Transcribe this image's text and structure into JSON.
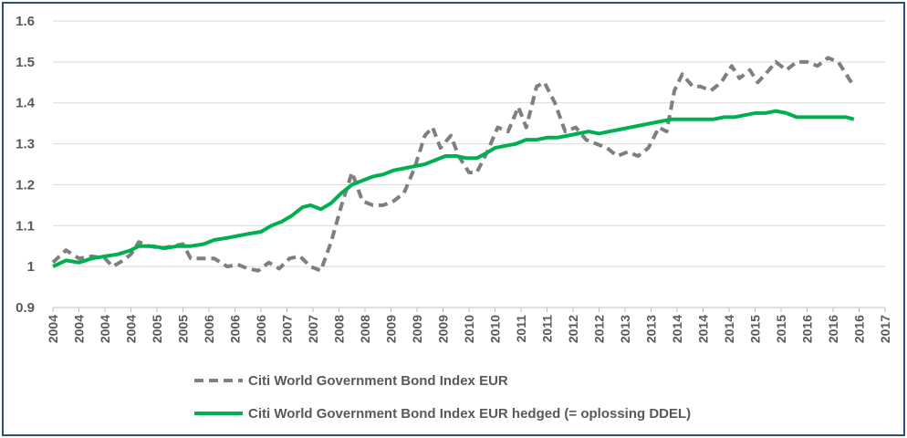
{
  "chart_data": {
    "type": "line",
    "title": "",
    "xlabel": "",
    "ylabel": "",
    "ylim": [
      0.9,
      1.6
    ],
    "yticks": [
      "0.9",
      "1",
      "1.1",
      "1.2",
      "1.3",
      "1.4",
      "1.5",
      "1.6"
    ],
    "xtick_labels": [
      "2004",
      "2004",
      "2004",
      "2004",
      "2005",
      "2005",
      "2006",
      "2006",
      "2006",
      "2007",
      "2007",
      "2008",
      "2008",
      "2009",
      "2009",
      "2009",
      "2010",
      "2010",
      "2011",
      "2011",
      "2012",
      "2012",
      "2013",
      "2013",
      "2014",
      "2014",
      "2014",
      "2015",
      "2015",
      "2016",
      "2016",
      "2016",
      "2017"
    ],
    "grid": "horizontal",
    "legend_position": "bottom",
    "series": [
      {
        "name": "Citi World Government Bond Index EUR",
        "color": "#7f7f7f",
        "style": "dashed",
        "points": [
          [
            0,
            1.01
          ],
          [
            0.5,
            1.04
          ],
          [
            1,
            1.02
          ],
          [
            1.5,
            1.025
          ],
          [
            2,
            1.02
          ],
          [
            2.3,
            1.0
          ],
          [
            2.7,
            1.015
          ],
          [
            3,
            1.03
          ],
          [
            3.3,
            1.06
          ],
          [
            3.7,
            1.05
          ],
          [
            4.2,
            1.045
          ],
          [
            4.6,
            1.05
          ],
          [
            5,
            1.055
          ],
          [
            5.3,
            1.02
          ],
          [
            5.8,
            1.02
          ],
          [
            6.2,
            1.02
          ],
          [
            6.7,
            1.0
          ],
          [
            7.1,
            1.005
          ],
          [
            7.5,
            0.995
          ],
          [
            7.9,
            0.99
          ],
          [
            8.3,
            1.01
          ],
          [
            8.7,
            0.995
          ],
          [
            9.1,
            1.02
          ],
          [
            9.5,
            1.025
          ],
          [
            9.9,
            1.0
          ],
          [
            10.3,
            0.99
          ],
          [
            10.7,
            1.06
          ],
          [
            11.1,
            1.15
          ],
          [
            11.5,
            1.23
          ],
          [
            11.9,
            1.16
          ],
          [
            12.3,
            1.15
          ],
          [
            12.7,
            1.15
          ],
          [
            13.1,
            1.16
          ],
          [
            13.5,
            1.18
          ],
          [
            13.9,
            1.24
          ],
          [
            14.3,
            1.32
          ],
          [
            14.6,
            1.34
          ],
          [
            14.9,
            1.29
          ],
          [
            15.3,
            1.32
          ],
          [
            15.6,
            1.27
          ],
          [
            16,
            1.23
          ],
          [
            16.3,
            1.23
          ],
          [
            16.7,
            1.28
          ],
          [
            17.1,
            1.34
          ],
          [
            17.5,
            1.33
          ],
          [
            17.9,
            1.39
          ],
          [
            18.2,
            1.34
          ],
          [
            18.6,
            1.44
          ],
          [
            18.9,
            1.45
          ],
          [
            19.3,
            1.4
          ],
          [
            19.7,
            1.33
          ],
          [
            20.1,
            1.34
          ],
          [
            20.5,
            1.31
          ],
          [
            20.9,
            1.3
          ],
          [
            21.3,
            1.29
          ],
          [
            21.7,
            1.27
          ],
          [
            22.1,
            1.28
          ],
          [
            22.5,
            1.27
          ],
          [
            22.9,
            1.29
          ],
          [
            23.3,
            1.34
          ],
          [
            23.6,
            1.33
          ],
          [
            23.9,
            1.43
          ],
          [
            24.2,
            1.47
          ],
          [
            24.6,
            1.44
          ],
          [
            24.9,
            1.44
          ],
          [
            25.3,
            1.43
          ],
          [
            25.7,
            1.45
          ],
          [
            26.1,
            1.49
          ],
          [
            26.4,
            1.46
          ],
          [
            26.8,
            1.48
          ],
          [
            27.1,
            1.45
          ],
          [
            27.4,
            1.47
          ],
          [
            27.8,
            1.5
          ],
          [
            28.2,
            1.48
          ],
          [
            28.6,
            1.5
          ],
          [
            29,
            1.5
          ],
          [
            29.4,
            1.49
          ],
          [
            29.8,
            1.51
          ],
          [
            30.2,
            1.5
          ],
          [
            30.5,
            1.47
          ],
          [
            30.8,
            1.44
          ]
        ]
      },
      {
        "name": "Citi World Government Bond Index EUR hedged (= oplossing DDEL)",
        "color": "#00b050",
        "style": "solid",
        "points": [
          [
            0,
            1.0
          ],
          [
            0.5,
            1.015
          ],
          [
            1,
            1.01
          ],
          [
            1.5,
            1.02
          ],
          [
            2,
            1.025
          ],
          [
            2.5,
            1.03
          ],
          [
            3,
            1.04
          ],
          [
            3.3,
            1.05
          ],
          [
            3.8,
            1.05
          ],
          [
            4.3,
            1.045
          ],
          [
            4.8,
            1.05
          ],
          [
            5.3,
            1.05
          ],
          [
            5.8,
            1.055
          ],
          [
            6.2,
            1.065
          ],
          [
            6.7,
            1.07
          ],
          [
            7.1,
            1.075
          ],
          [
            7.5,
            1.08
          ],
          [
            8,
            1.085
          ],
          [
            8.4,
            1.1
          ],
          [
            8.8,
            1.11
          ],
          [
            9.2,
            1.125
          ],
          [
            9.6,
            1.145
          ],
          [
            9.9,
            1.15
          ],
          [
            10.3,
            1.14
          ],
          [
            10.7,
            1.155
          ],
          [
            11.1,
            1.18
          ],
          [
            11.5,
            1.2
          ],
          [
            11.9,
            1.21
          ],
          [
            12.3,
            1.22
          ],
          [
            12.7,
            1.225
          ],
          [
            13.1,
            1.235
          ],
          [
            13.5,
            1.24
          ],
          [
            13.9,
            1.245
          ],
          [
            14.3,
            1.25
          ],
          [
            14.7,
            1.26
          ],
          [
            15.1,
            1.27
          ],
          [
            15.5,
            1.27
          ],
          [
            15.9,
            1.265
          ],
          [
            16.3,
            1.265
          ],
          [
            16.6,
            1.275
          ],
          [
            17,
            1.29
          ],
          [
            17.4,
            1.295
          ],
          [
            17.8,
            1.3
          ],
          [
            18.2,
            1.31
          ],
          [
            18.6,
            1.31
          ],
          [
            19,
            1.315
          ],
          [
            19.4,
            1.315
          ],
          [
            19.8,
            1.32
          ],
          [
            20.2,
            1.325
          ],
          [
            20.6,
            1.33
          ],
          [
            21,
            1.325
          ],
          [
            21.4,
            1.33
          ],
          [
            21.8,
            1.335
          ],
          [
            22.2,
            1.34
          ],
          [
            22.6,
            1.345
          ],
          [
            23,
            1.35
          ],
          [
            23.4,
            1.355
          ],
          [
            23.8,
            1.36
          ],
          [
            24.2,
            1.36
          ],
          [
            24.6,
            1.36
          ],
          [
            25,
            1.36
          ],
          [
            25.4,
            1.36
          ],
          [
            25.8,
            1.365
          ],
          [
            26.2,
            1.365
          ],
          [
            26.6,
            1.37
          ],
          [
            27,
            1.375
          ],
          [
            27.4,
            1.375
          ],
          [
            27.8,
            1.38
          ],
          [
            28.2,
            1.375
          ],
          [
            28.6,
            1.365
          ],
          [
            29,
            1.365
          ],
          [
            29.4,
            1.365
          ],
          [
            29.8,
            1.365
          ],
          [
            30.2,
            1.365
          ],
          [
            30.5,
            1.365
          ],
          [
            30.8,
            1.36
          ]
        ]
      }
    ]
  }
}
